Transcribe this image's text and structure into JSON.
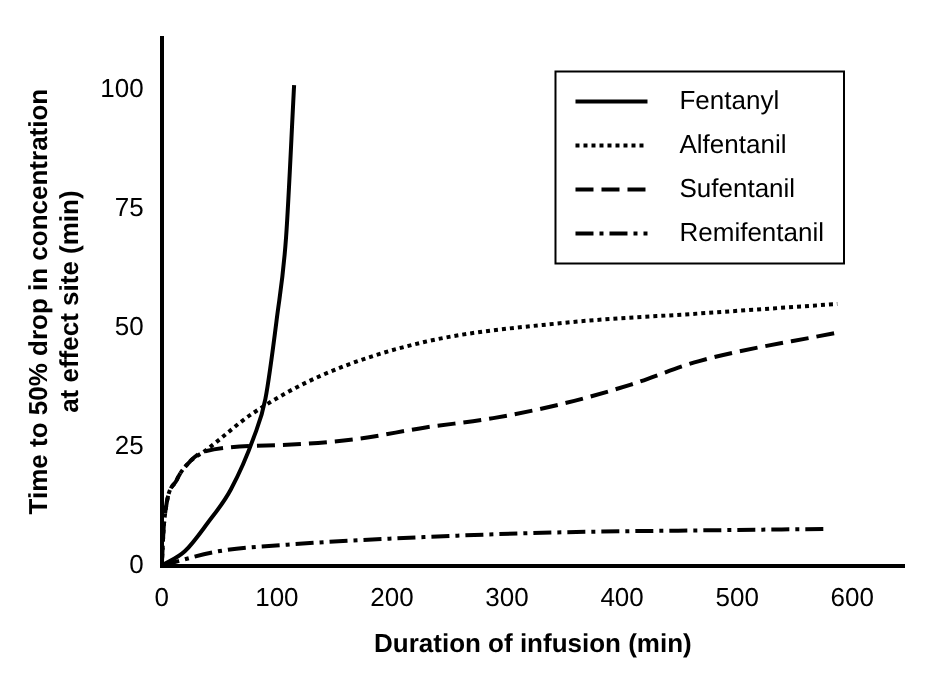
{
  "chart_data": {
    "type": "line",
    "xlabel": "Duration of infusion (min)",
    "ylabel": "Time to 50% drop in concentration\nat effect site (min)",
    "xlim": [
      0,
      645
    ],
    "xticks": [
      0,
      100,
      200,
      300,
      400,
      500,
      600
    ],
    "ylim": [
      0,
      111
    ],
    "yticks": [
      0,
      25,
      50,
      75,
      100
    ],
    "grid": false,
    "legend": "top right",
    "marker": "none",
    "series": [
      {
        "name": "Fentanyl",
        "color": "#000000",
        "line_style": "solid",
        "x": [
          0,
          20,
          40,
          60,
          80,
          90,
          100,
          108,
          115
        ],
        "values": [
          0,
          3,
          9,
          16,
          27,
          35,
          52,
          69,
          101
        ]
      },
      {
        "name": "Alfentanil",
        "color": "#000000",
        "line_style": "dotted",
        "x": [
          0,
          2,
          13,
          25,
          37,
          79,
          139,
          228,
          348,
          467,
          587
        ],
        "values": [
          0,
          9,
          18,
          22,
          24,
          32,
          40,
          47,
          51,
          53,
          55
        ]
      },
      {
        "name": "Sufentanil",
        "color": "#000000",
        "line_style": "dashed",
        "x": [
          0,
          2,
          13,
          25,
          37,
          109,
          169,
          228,
          288,
          348,
          407,
          467,
          587
        ],
        "values": [
          0,
          9,
          18,
          22,
          24,
          25.4,
          26.6,
          29,
          31,
          34,
          38,
          43,
          49
        ]
      },
      {
        "name": "Remifentanil",
        "color": "#000000",
        "line_style": "dashdot",
        "x": [
          0,
          49,
          109,
          228,
          348,
          467,
          575
        ],
        "values": [
          0,
          3,
          4.4,
          6,
          7,
          7.4,
          7.7
        ]
      }
    ]
  }
}
